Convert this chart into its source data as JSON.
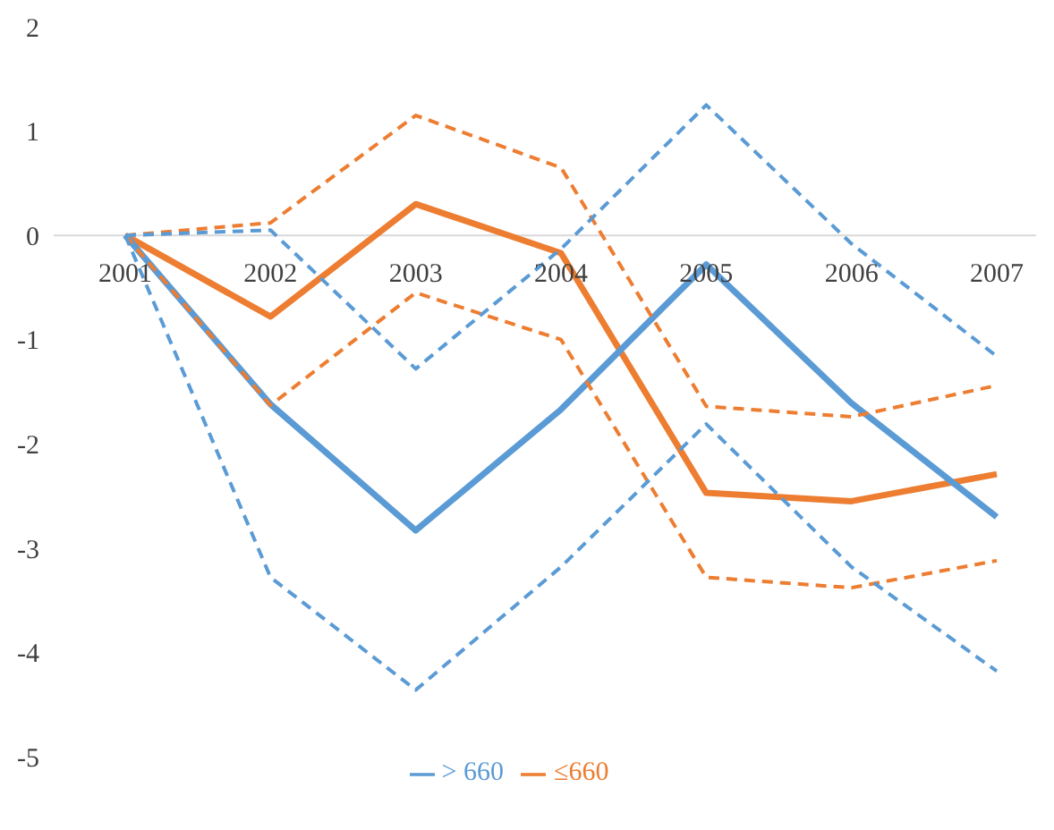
{
  "chart_data": {
    "type": "line",
    "categories": [
      "2001",
      "2002",
      "2003",
      "2004",
      "2005",
      "2006",
      "2007"
    ],
    "series": [
      {
        "name": "≤660",
        "color": "#ed7d31",
        "line_style": "solid",
        "values": [
          0,
          -0.78,
          0.3,
          -0.17,
          -2.47,
          -2.55,
          -2.29
        ]
      },
      {
        "name": "> 660",
        "color": "#5b9bd5",
        "line_style": "solid",
        "values": [
          0,
          -1.62,
          -2.83,
          -1.67,
          -0.28,
          -1.61,
          -2.7
        ]
      },
      {
        "color": "#ed7d31",
        "line_style": "dashed",
        "values": [
          0,
          0.12,
          1.15,
          0.65,
          -1.64,
          -1.74,
          -1.44
        ]
      },
      {
        "color": "#ed7d31",
        "line_style": "dashed",
        "values": [
          0,
          -1.63,
          -0.55,
          -1.0,
          -3.28,
          -3.38,
          -3.12
        ]
      },
      {
        "color": "#5b9bd5",
        "line_style": "dashed",
        "values": [
          0,
          0.05,
          -1.28,
          -0.13,
          1.25,
          -0.08,
          -1.16
        ]
      },
      {
        "color": "#5b9bd5",
        "line_style": "dashed",
        "values": [
          0,
          -3.28,
          -4.36,
          -3.18,
          -1.81,
          -3.18,
          -4.18
        ]
      }
    ],
    "ylim": [
      -5,
      2
    ],
    "yticks": [
      -5,
      -4,
      -3,
      -2,
      -1,
      0,
      1,
      2
    ],
    "grid": false,
    "legend": "bottom",
    "marker": "none"
  }
}
